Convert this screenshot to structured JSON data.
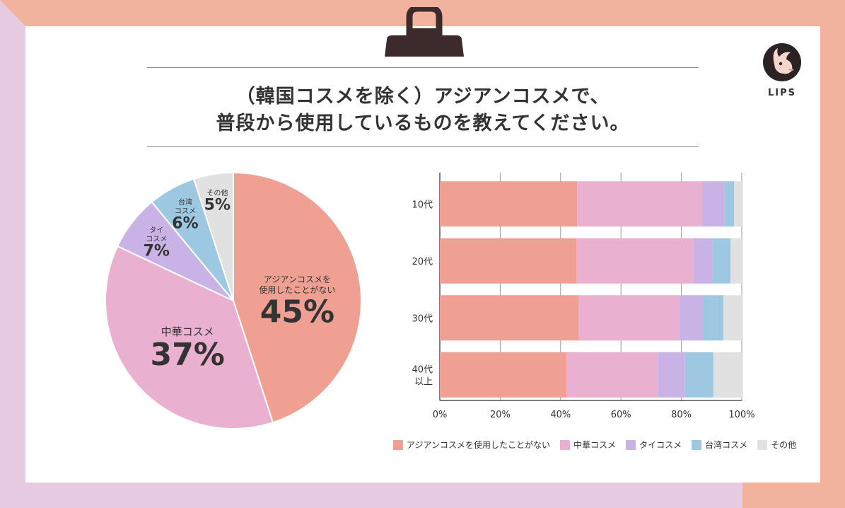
{
  "title": {
    "line1": "（韓国コスメを除く）アジアンコスメで、",
    "line2": "普段から使用しているものを教えてください。"
  },
  "logo": {
    "text": "LIPS"
  },
  "colors": {
    "none": "#efa092",
    "china": "#eab0cf",
    "thai": "#c9b3e6",
    "taiwan": "#9ec8e2",
    "other": "#e1e1e1",
    "frame_pink": "#f2b39e",
    "frame_lavender": "#e6cbe3"
  },
  "chart_data": [
    {
      "type": "pie",
      "slices": [
        {
          "name": "アジアンコスメを使用したことがない",
          "label_lines": [
            "アジアンコスメを",
            "使用したことがない"
          ],
          "value": 45,
          "display": "45%",
          "color": "#efa092"
        },
        {
          "name": "中華コスメ",
          "label_lines": [
            "中華コスメ"
          ],
          "value": 37,
          "display": "37%",
          "color": "#eab0cf"
        },
        {
          "name": "タイコスメ",
          "label_lines": [
            "タイ",
            "コスメ"
          ],
          "value": 7,
          "display": "7%",
          "color": "#c9b3e6"
        },
        {
          "name": "台湾コスメ",
          "label_lines": [
            "台湾",
            "コスメ"
          ],
          "value": 6,
          "display": "6%",
          "color": "#9ec8e2"
        },
        {
          "name": "その他",
          "label_lines": [
            "その他"
          ],
          "value": 5,
          "display": "5%",
          "color": "#e1e1e1"
        }
      ]
    },
    {
      "type": "bar",
      "orientation": "horizontal",
      "stacked": true,
      "categories": [
        [
          "10代"
        ],
        [
          "20代"
        ],
        [
          "30代"
        ],
        [
          "40代",
          "以上"
        ]
      ],
      "xlim": [
        0,
        100
      ],
      "xticks": [
        "0%",
        "20%",
        "40%",
        "60%",
        "80%",
        "100%"
      ],
      "grid": true,
      "legend_position": "bottom",
      "series": [
        {
          "name": "アジアンコスメを使用したことがない",
          "color": "#efa092",
          "values": [
            45.5,
            45.2,
            46.0,
            42.0
          ]
        },
        {
          "name": "中華コスメ",
          "color": "#eab0cf",
          "values": [
            41.5,
            38.8,
            33.2,
            30.2
          ]
        },
        {
          "name": "タイコスメ",
          "color": "#c9b3e6",
          "values": [
            7.3,
            6.3,
            7.8,
            9.0
          ]
        },
        {
          "name": "台湾コスメ",
          "color": "#9ec8e2",
          "values": [
            3.2,
            6.0,
            6.9,
            9.4
          ]
        },
        {
          "name": "その他",
          "color": "#e1e1e1",
          "values": [
            2.5,
            3.7,
            6.1,
            9.4
          ]
        }
      ]
    }
  ]
}
